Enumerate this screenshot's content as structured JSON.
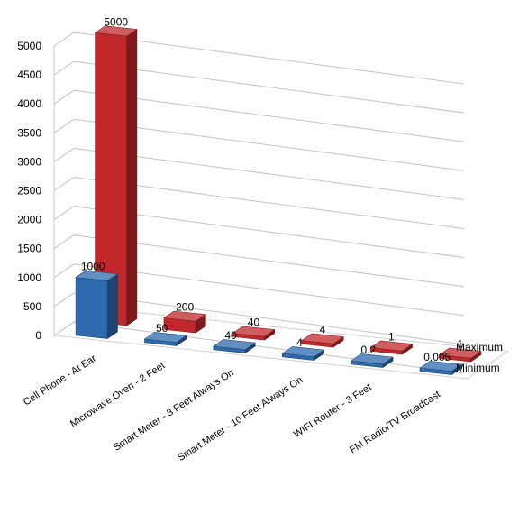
{
  "chart_data": {
    "type": "bar",
    "variant": "3d-column-depth",
    "categories": [
      "Cell Phone - At Ear",
      "Microwave Oven - 2 Feet",
      "Smart Meter - 3 Feet Always On",
      "Smart Meter - 10 Feet Always On",
      "WIFI Router - 3 Feet",
      "FM Radio/TV Broadcast"
    ],
    "series": [
      {
        "name": "Minimum",
        "color": "#2E6AAE",
        "values": [
          1000,
          50,
          40,
          4,
          0.2,
          0.005
        ],
        "labels": [
          "1000",
          "50",
          "40",
          "4",
          "0.2",
          "0.005"
        ]
      },
      {
        "name": "Maximum",
        "color": "#C0282C",
        "values": [
          5000,
          200,
          40,
          4,
          1,
          1
        ],
        "labels": [
          "5000",
          "200",
          "40",
          "4",
          "1",
          "1"
        ]
      }
    ],
    "yticks": [
      "0",
      "500",
      "1000",
      "1500",
      "2000",
      "2500",
      "3000",
      "3500",
      "4000",
      "4500",
      "5000"
    ],
    "ylim": [
      0,
      5000
    ],
    "grid": true,
    "legend": "series names shown on depth axis (right)"
  }
}
